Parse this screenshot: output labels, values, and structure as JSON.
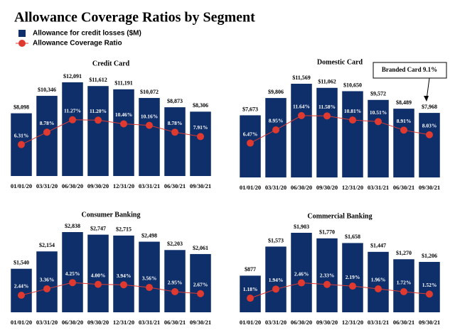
{
  "title": "Allowance Coverage Ratios by Segment",
  "chart_data": [
    {
      "type": "bar",
      "title": "Credit Card",
      "categories": [
        "01/01/20",
        "03/31/20",
        "06/30/20",
        "09/30/20",
        "12/31/20",
        "03/31/21",
        "06/30/21",
        "09/30/21"
      ],
      "series": [
        {
          "name": "Allowance for credit losses ($M)",
          "color": "#0e2f6a",
          "values": [
            8098,
            10346,
            12091,
            11612,
            11191,
            10072,
            8873,
            8306
          ],
          "value_labels": [
            "$8,098",
            "$10,346",
            "$12,091",
            "$11,612",
            "$11,191",
            "$10,072",
            "$8,873",
            "$8,306"
          ]
        },
        {
          "name": "Allowance Coverage Ratio",
          "type": "line",
          "axis": "y2",
          "color": "#e03a30",
          "values": [
            6.31,
            8.78,
            11.27,
            11.2,
            10.46,
            10.16,
            8.78,
            7.91
          ],
          "value_labels": [
            "6.31%",
            "8.78%",
            "11.27%",
            "11.20%",
            "10.46%",
            "10.16%",
            "8.78%",
            "7.91%"
          ]
        }
      ]
    },
    {
      "type": "bar",
      "title": "Domestic Card",
      "annotation": "Branded Card  9.1%",
      "categories": [
        "01/01/20",
        "03/31/20",
        "06/30/20",
        "09/30/20",
        "12/31/20",
        "03/31/21",
        "06/30/21",
        "09/30/21"
      ],
      "series": [
        {
          "color": "#0e2f6a",
          "values": [
            7673,
            9806,
            11569,
            11062,
            10650,
            9572,
            8489,
            7968
          ],
          "value_labels": [
            "$7,673",
            "$9,806",
            "$11,569",
            "$11,062",
            "$10,650",
            "$9,572",
            "$8,489",
            "$7,968"
          ]
        },
        {
          "type": "line",
          "axis": "y2",
          "color": "#e03a30",
          "values": [
            6.47,
            8.95,
            11.64,
            11.58,
            10.81,
            10.51,
            8.91,
            8.03
          ],
          "value_labels": [
            "6.47%",
            "8.95%",
            "11.64%",
            "11.58%",
            "10.81%",
            "10.51%",
            "8.91%",
            "8.03%"
          ]
        }
      ]
    },
    {
      "type": "bar",
      "title": "Consumer Banking",
      "categories": [
        "01/01/20",
        "03/31/20",
        "06/30/20",
        "09/30/20",
        "12/31/20",
        "03/31/21",
        "06/30/21",
        "09/30/21"
      ],
      "series": [
        {
          "color": "#0e2f6a",
          "values": [
            1540,
            2154,
            2838,
            2747,
            2715,
            2498,
            2203,
            2061
          ],
          "value_labels": [
            "$1,540",
            "$2,154",
            "$2,838",
            "$2,747",
            "$2,715",
            "$2,498",
            "$2,203",
            "$2,061"
          ]
        },
        {
          "type": "line",
          "axis": "y2",
          "color": "#e03a30",
          "values": [
            2.44,
            3.36,
            4.25,
            4.0,
            3.94,
            3.56,
            2.95,
            2.67
          ],
          "value_labels": [
            "2.44%",
            "3.36%",
            "4.25%",
            "4.00%",
            "3.94%",
            "3.56%",
            "2.95%",
            "2.67%"
          ]
        }
      ]
    },
    {
      "type": "bar",
      "title": "Commercial Banking",
      "categories": [
        "01/01/20",
        "03/31/20",
        "06/30/20",
        "09/30/20",
        "12/31/20",
        "03/31/21",
        "06/30/21",
        "09/30/21"
      ],
      "series": [
        {
          "color": "#0e2f6a",
          "values": [
            877,
            1573,
            1903,
            1770,
            1658,
            1447,
            1270,
            1206
          ],
          "value_labels": [
            "$877",
            "$1,573",
            "$1,903",
            "$1,770",
            "$1,658",
            "$1,447",
            "$1,270",
            "$1,206"
          ]
        },
        {
          "type": "line",
          "axis": "y2",
          "color": "#e03a30",
          "values": [
            1.18,
            1.94,
            2.46,
            2.33,
            2.19,
            1.96,
            1.72,
            1.52
          ],
          "value_labels": [
            "1.18%",
            "1.94%",
            "2.46%",
            "2.33%",
            "2.19%",
            "1.96%",
            "1.72%",
            "1.52%"
          ]
        }
      ]
    }
  ]
}
